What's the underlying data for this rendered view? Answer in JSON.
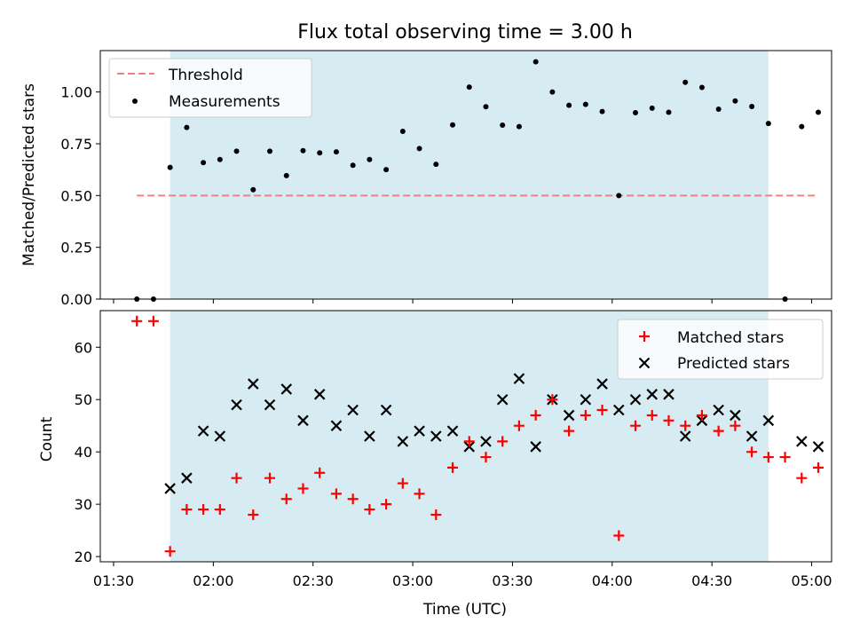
{
  "chart_data": [
    {
      "type": "scatter",
      "title": "Flux total observing time = 3.00 h",
      "ylabel": "Matched/Predicted stars",
      "ylim": [
        0,
        1.2
      ],
      "yticks": [
        "0.00",
        "0.25",
        "0.50",
        "0.75",
        "1.00"
      ],
      "legend_position": "top-left",
      "shaded_span": [
        "01:47",
        "04:47"
      ],
      "threshold": {
        "name": "Threshold",
        "value": 0.5,
        "x_range": [
          "01:37",
          "05:02"
        ],
        "color": "#f08080"
      },
      "series": [
        {
          "name": "Measurements",
          "color": "#000000",
          "points": [
            [
              "01:37",
              0.0
            ],
            [
              "01:42",
              0.0
            ],
            [
              "01:47",
              0.636
            ],
            [
              "01:52",
              0.829
            ],
            [
              "01:57",
              0.659
            ],
            [
              "02:02",
              0.674
            ],
            [
              "02:07",
              0.714
            ],
            [
              "02:12",
              0.528
            ],
            [
              "02:17",
              0.714
            ],
            [
              "02:22",
              0.596
            ],
            [
              "02:27",
              0.717
            ],
            [
              "02:32",
              0.706
            ],
            [
              "02:37",
              0.711
            ],
            [
              "02:42",
              0.646
            ],
            [
              "02:47",
              0.674
            ],
            [
              "02:52",
              0.625
            ],
            [
              "02:57",
              0.81
            ],
            [
              "03:02",
              0.727
            ],
            [
              "03:07",
              0.651
            ],
            [
              "03:12",
              0.841
            ],
            [
              "03:17",
              1.024
            ],
            [
              "03:22",
              0.929
            ],
            [
              "03:27",
              0.84
            ],
            [
              "03:32",
              0.833
            ],
            [
              "03:37",
              1.146
            ],
            [
              "03:42",
              1.0
            ],
            [
              "03:47",
              0.936
            ],
            [
              "03:52",
              0.94
            ],
            [
              "03:57",
              0.906
            ],
            [
              "04:02",
              0.5
            ],
            [
              "04:07",
              0.9
            ],
            [
              "04:12",
              0.922
            ],
            [
              "04:17",
              0.902
            ],
            [
              "04:22",
              1.047
            ],
            [
              "04:27",
              1.022
            ],
            [
              "04:32",
              0.917
            ],
            [
              "04:37",
              0.957
            ],
            [
              "04:42",
              0.93
            ],
            [
              "04:47",
              0.848
            ],
            [
              "04:52",
              0.0
            ],
            [
              "04:57",
              0.833
            ],
            [
              "05:02",
              0.902
            ]
          ]
        }
      ]
    },
    {
      "type": "scatter",
      "xlabel": "Time (UTC)",
      "ylabel": "Count",
      "ylim": [
        19,
        67
      ],
      "yticks": [
        "20",
        "30",
        "40",
        "50",
        "60"
      ],
      "xlim": [
        "01:26",
        "05:06"
      ],
      "xticks": [
        "01:30",
        "02:00",
        "02:30",
        "03:00",
        "03:30",
        "04:00",
        "04:30",
        "05:00"
      ],
      "legend_position": "top-right",
      "shaded_span": [
        "01:47",
        "04:47"
      ],
      "x": [
        "01:37",
        "01:42",
        "01:47",
        "01:52",
        "01:57",
        "02:02",
        "02:07",
        "02:12",
        "02:17",
        "02:22",
        "02:27",
        "02:32",
        "02:37",
        "02:42",
        "02:47",
        "02:52",
        "02:57",
        "03:02",
        "03:07",
        "03:12",
        "03:17",
        "03:22",
        "03:27",
        "03:32",
        "03:37",
        "03:42",
        "03:47",
        "03:52",
        "03:57",
        "04:02",
        "04:07",
        "04:12",
        "04:17",
        "04:22",
        "04:27",
        "04:32",
        "04:37",
        "04:42",
        "04:47",
        "04:52",
        "04:57",
        "05:02"
      ],
      "series": [
        {
          "name": "Matched stars",
          "marker": "+",
          "color": "#ff0000",
          "values": [
            65,
            65,
            21,
            29,
            29,
            29,
            35,
            28,
            35,
            31,
            33,
            36,
            32,
            31,
            29,
            30,
            34,
            32,
            28,
            37,
            42,
            39,
            42,
            45,
            47,
            50,
            44,
            47,
            48,
            24,
            45,
            47,
            46,
            45,
            47,
            44,
            45,
            40,
            39,
            39,
            35,
            37
          ]
        },
        {
          "name": "Predicted stars",
          "marker": "x",
          "color": "#000000",
          "values": [
            null,
            null,
            33,
            35,
            44,
            43,
            49,
            53,
            49,
            52,
            46,
            51,
            45,
            48,
            43,
            48,
            42,
            44,
            43,
            44,
            41,
            42,
            50,
            54,
            41,
            50,
            47,
            50,
            53,
            48,
            50,
            51,
            51,
            43,
            46,
            48,
            47,
            43,
            46,
            null,
            42,
            41
          ]
        }
      ]
    }
  ]
}
